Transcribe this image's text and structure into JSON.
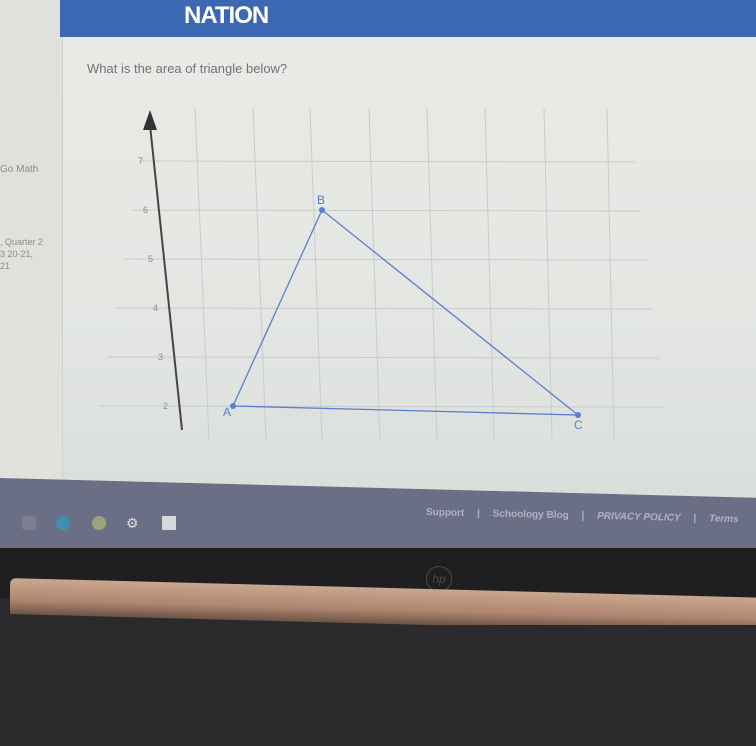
{
  "header": {
    "logo_text": "NATION",
    "brand_color": "#3c67b3"
  },
  "sidebar": {
    "items": [
      "Go Math",
      ", Quarter 2",
      "3 20-21,",
      "21"
    ]
  },
  "question": {
    "text": "What is the area of triangle below?"
  },
  "chart_data": {
    "type": "scatter",
    "title": "",
    "y_tick_labels": [
      "2",
      "3",
      "4",
      "5",
      "6",
      "7"
    ],
    "points": [
      {
        "label": "A",
        "y": 2
      },
      {
        "label": "B",
        "y": 6
      },
      {
        "label": "C",
        "y": 2
      }
    ],
    "point_color": "#5b7fd0",
    "grid": true
  },
  "footer": {
    "links": [
      "Support",
      "Schoology Blog",
      "PRIVACY POLICY",
      "Terms"
    ],
    "separator": "|"
  },
  "device": {
    "brand": "hp"
  }
}
